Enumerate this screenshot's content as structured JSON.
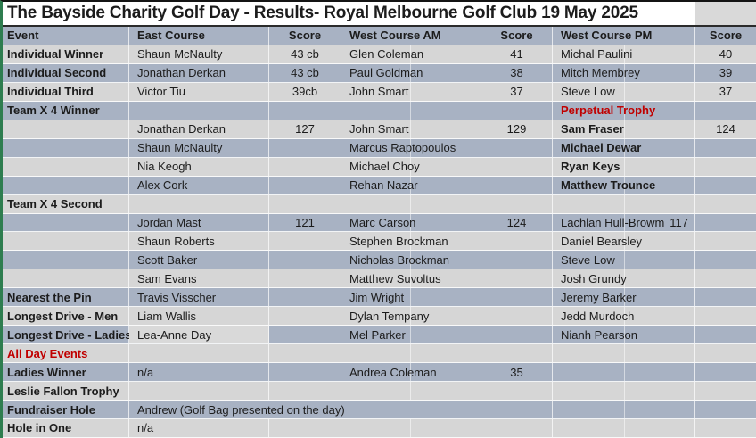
{
  "title": "The Bayside Charity Golf Day - Results- Royal Melbourne Golf Club 19 May 2025",
  "header": {
    "event": "Event",
    "east": "East Course",
    "east_score": "Score",
    "am": "West Course AM",
    "am_score": "Score",
    "pm": "West Course PM",
    "pm_score": "Score"
  },
  "colors": {
    "band_blue": "#a8b2c3",
    "band_light": "#d6d6d6",
    "title_bg": "#ffffff",
    "accent_red": "#c00000",
    "left_border_green": "#2e7d4f",
    "text": "#1c1c1c"
  },
  "rows": [
    {
      "event": "Individual Winner",
      "east": "Shaun McNaulty",
      "east_score": "43 cb",
      "am": "Glen Coleman",
      "am_score": "41",
      "pm": "Michal Paulini",
      "pm_score": "40"
    },
    {
      "event": "Individual Second",
      "east": "Jonathan Derkan",
      "east_score": "43 cb",
      "am": "Paul Goldman",
      "am_score": "38",
      "pm": "Mitch Membrey",
      "pm_score": "39"
    },
    {
      "event": "Individual Third",
      "east": "Victor Tiu",
      "east_score": "39cb",
      "am": "John Smart",
      "am_score": "37",
      "pm": "Steve Low",
      "pm_score": "37"
    },
    {
      "event": "Team X 4 Winner",
      "east": "",
      "east_score": "",
      "am": "",
      "am_score": "",
      "pm": "Perpetual Trophy",
      "pm_score": "",
      "pm_red": true
    },
    {
      "event": "",
      "east": "Jonathan Derkan",
      "east_score": "127",
      "am": "John Smart",
      "am_score": "129",
      "pm": "Sam Fraser",
      "pm_score": "124",
      "pm_bold": true
    },
    {
      "event": "",
      "east": "Shaun McNaulty",
      "east_score": "",
      "am": "Marcus Raptopoulos",
      "am_score": "",
      "pm": "Michael Dewar",
      "pm_score": "",
      "pm_bold": true
    },
    {
      "event": "",
      "east": "Nia Keogh",
      "east_score": "",
      "am": "Michael Choy",
      "am_score": "",
      "pm": "Ryan Keys",
      "pm_score": "",
      "pm_bold": true
    },
    {
      "event": "",
      "east": "Alex Cork",
      "east_score": "",
      "am": "Rehan Nazar",
      "am_score": "",
      "pm": "Matthew Trounce",
      "pm_score": "",
      "pm_bold": true
    },
    {
      "event": "Team X 4 Second",
      "east": "",
      "east_score": "",
      "am": "",
      "am_score": "",
      "pm": "",
      "pm_score": ""
    },
    {
      "event": "",
      "east": "Jordan Mast",
      "east_score": "121",
      "am": "Marc Carson",
      "am_score": "124",
      "pm": "Lachlan Hull-Browm",
      "pm_inline_score": "117",
      "pm_score": ""
    },
    {
      "event": "",
      "east": "Shaun Roberts",
      "east_score": "",
      "am": "Stephen Brockman",
      "am_score": "",
      "pm": "Daniel Bearsley",
      "pm_score": ""
    },
    {
      "event": "",
      "east": "Scott Baker",
      "east_score": "",
      "am": "Nicholas Brockman",
      "am_score": "",
      "pm": "Steve Low",
      "pm_score": ""
    },
    {
      "event": "",
      "east": "Sam Evans",
      "east_score": "",
      "am": "Matthew Suvoltus",
      "am_score": "",
      "pm": "Josh Grundy",
      "pm_score": ""
    },
    {
      "event": "Nearest the Pin",
      "east": "Travis Visscher",
      "east_score": "",
      "am": "Jim Wright",
      "am_score": "",
      "pm": "Jeremy Barker",
      "pm_score": ""
    },
    {
      "event": "Longest Drive - Men",
      "east": "Liam Wallis",
      "east_score": "",
      "am": "Dylan Tempany",
      "am_score": "",
      "pm": "Jedd Murdoch",
      "pm_score": ""
    },
    {
      "event": "Longest Drive - Ladies",
      "east": "Lea-Anne Day",
      "east_light": true,
      "east_score": "",
      "am": "Mel Parker",
      "am_score": "",
      "pm": "Nianh Pearson",
      "pm_score": ""
    },
    {
      "event": "All Day Events",
      "event_red": true,
      "east": "",
      "east_score": "",
      "am": "",
      "am_score": "",
      "pm": "",
      "pm_score": ""
    },
    {
      "event": "Ladies Winner",
      "east": "n/a",
      "east_score": "",
      "am": "Andrea Coleman",
      "am_score": "35",
      "pm": "",
      "pm_score": ""
    },
    {
      "event": "Leslie Fallon Trophy",
      "east": "",
      "east_score": "",
      "am": "",
      "am_score": "",
      "pm": "",
      "pm_score": ""
    },
    {
      "event": "Fundraiser Hole",
      "east": "Andrew (Golf Bag presented on the day)",
      "east_span": true,
      "pm": "",
      "pm_score": ""
    },
    {
      "event": "Hole in One",
      "east": "n/a",
      "east_score": "",
      "am": "",
      "am_score": "",
      "pm": "",
      "pm_score": ""
    }
  ]
}
